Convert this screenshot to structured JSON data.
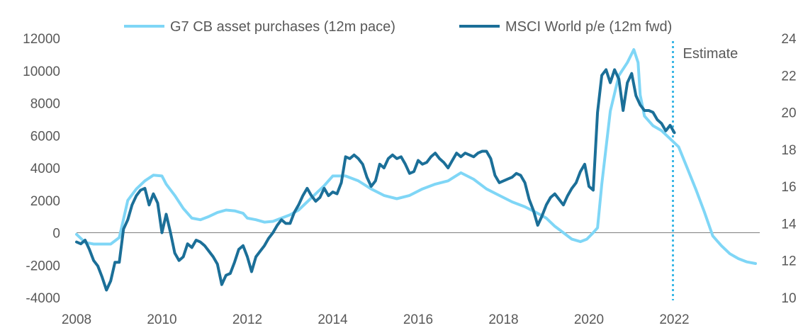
{
  "chart_data": {
    "type": "line",
    "title": "",
    "xlabel": "",
    "ylabel": "",
    "y2label": "",
    "x_ticks": [
      "2008",
      "2010",
      "2012",
      "2014",
      "2016",
      "2018",
      "2020",
      "2022"
    ],
    "x_range": [
      2008,
      2024
    ],
    "y_left_ticks": [
      "12000",
      "10000",
      "8000",
      "6000",
      "4000",
      "2000",
      "0",
      "-2000",
      "-4000"
    ],
    "y_left_range": [
      -4000,
      12000
    ],
    "y_right_ticks": [
      "24",
      "22",
      "20",
      "18",
      "16",
      "14",
      "12",
      "10"
    ],
    "y_right_range": [
      10,
      24
    ],
    "legend_position": "top",
    "grid": false,
    "zero_line": true,
    "annotation": {
      "label": "Estimate",
      "x": 2022
    },
    "series": [
      {
        "name": "G7 CB asset purchases (12m pace)",
        "axis": "left",
        "color": "#7fd6f6",
        "x": [
          2008.0,
          2008.2,
          2008.4,
          2008.6,
          2008.8,
          2009.0,
          2009.2,
          2009.4,
          2009.6,
          2009.8,
          2010.0,
          2010.1,
          2010.3,
          2010.5,
          2010.7,
          2010.9,
          2011.1,
          2011.3,
          2011.5,
          2011.7,
          2011.9,
          2012.0,
          2012.2,
          2012.4,
          2012.6,
          2012.8,
          2013.0,
          2013.2,
          2013.4,
          2013.6,
          2013.8,
          2014.0,
          2014.3,
          2014.6,
          2014.9,
          2015.2,
          2015.5,
          2015.8,
          2016.1,
          2016.4,
          2016.7,
          2017.0,
          2017.3,
          2017.6,
          2017.9,
          2018.2,
          2018.5,
          2018.8,
          2019.0,
          2019.2,
          2019.4,
          2019.6,
          2019.8,
          2019.95,
          2020.1,
          2020.2,
          2020.3,
          2020.5,
          2020.7,
          2020.9,
          2021.05,
          2021.15,
          2021.2,
          2021.3,
          2021.5,
          2021.7,
          2021.9,
          2022.1,
          2022.3,
          2022.5,
          2022.7,
          2022.9,
          2023.1,
          2023.3,
          2023.5,
          2023.7,
          2023.9
        ],
        "values": [
          -100,
          -600,
          -700,
          -700,
          -700,
          -300,
          2000,
          2700,
          3200,
          3550,
          3500,
          3000,
          2300,
          1500,
          900,
          800,
          1000,
          1250,
          1400,
          1350,
          1200,
          900,
          800,
          650,
          700,
          900,
          1100,
          1400,
          1900,
          2400,
          2900,
          3500,
          3500,
          3200,
          2700,
          2300,
          2100,
          2300,
          2700,
          3000,
          3200,
          3700,
          3300,
          2700,
          2300,
          1900,
          1600,
          1200,
          900,
          400,
          0,
          -400,
          -550,
          -400,
          0,
          300,
          3000,
          7500,
          9700,
          10500,
          11300,
          10500,
          8500,
          7200,
          6600,
          6300,
          5800,
          5300,
          4000,
          2700,
          1300,
          -200,
          -800,
          -1300,
          -1600,
          -1800,
          -1900
        ]
      },
      {
        "name": "MSCI World p/e (12m fwd)",
        "axis": "right",
        "color": "#1b6f98",
        "x": [
          2008.0,
          2008.1,
          2008.2,
          2008.3,
          2008.4,
          2008.5,
          2008.6,
          2008.7,
          2008.8,
          2008.9,
          2009.0,
          2009.1,
          2009.2,
          2009.3,
          2009.4,
          2009.5,
          2009.6,
          2009.7,
          2009.8,
          2009.9,
          2010.0,
          2010.1,
          2010.2,
          2010.3,
          2010.4,
          2010.5,
          2010.6,
          2010.7,
          2010.8,
          2010.9,
          2011.0,
          2011.1,
          2011.2,
          2011.3,
          2011.4,
          2011.5,
          2011.6,
          2011.7,
          2011.8,
          2011.9,
          2012.0,
          2012.1,
          2012.2,
          2012.3,
          2012.4,
          2012.5,
          2012.6,
          2012.7,
          2012.8,
          2012.9,
          2013.0,
          2013.1,
          2013.2,
          2013.3,
          2013.4,
          2013.5,
          2013.6,
          2013.7,
          2013.8,
          2013.9,
          2014.0,
          2014.1,
          2014.2,
          2014.3,
          2014.4,
          2014.5,
          2014.6,
          2014.7,
          2014.8,
          2014.9,
          2015.0,
          2015.1,
          2015.2,
          2015.3,
          2015.4,
          2015.5,
          2015.6,
          2015.7,
          2015.8,
          2015.9,
          2016.0,
          2016.1,
          2016.2,
          2016.3,
          2016.4,
          2016.5,
          2016.6,
          2016.7,
          2016.8,
          2016.9,
          2017.0,
          2017.1,
          2017.2,
          2017.3,
          2017.4,
          2017.5,
          2017.6,
          2017.7,
          2017.8,
          2017.9,
          2018.0,
          2018.1,
          2018.2,
          2018.3,
          2018.4,
          2018.5,
          2018.6,
          2018.7,
          2018.8,
          2018.9,
          2019.0,
          2019.1,
          2019.2,
          2019.3,
          2019.4,
          2019.5,
          2019.6,
          2019.7,
          2019.8,
          2019.9,
          2020.0,
          2020.1,
          2020.2,
          2020.3,
          2020.4,
          2020.5,
          2020.6,
          2020.7,
          2020.8,
          2020.9,
          2021.0,
          2021.1,
          2021.2,
          2021.3,
          2021.4,
          2021.5,
          2021.6,
          2021.7,
          2021.8,
          2021.9,
          2022.0
        ],
        "values": [
          13.0,
          12.9,
          13.1,
          12.6,
          12.0,
          11.7,
          11.1,
          10.4,
          10.9,
          11.9,
          11.9,
          13.7,
          14.2,
          15.0,
          15.5,
          15.8,
          15.9,
          15.0,
          15.6,
          15.1,
          13.5,
          14.5,
          13.5,
          12.4,
          12.0,
          12.2,
          12.9,
          12.7,
          13.1,
          13.0,
          12.8,
          12.5,
          12.2,
          11.8,
          10.7,
          11.2,
          11.3,
          11.9,
          12.6,
          12.8,
          12.2,
          11.4,
          12.2,
          12.5,
          12.8,
          13.2,
          13.5,
          13.9,
          14.2,
          14.0,
          14.0,
          14.6,
          15.0,
          15.5,
          15.9,
          15.5,
          15.2,
          15.4,
          15.9,
          15.5,
          15.7,
          15.6,
          16.2,
          17.6,
          17.5,
          17.7,
          17.5,
          17.2,
          16.5,
          16.0,
          16.3,
          17.2,
          17.0,
          17.5,
          17.7,
          17.5,
          17.6,
          17.2,
          16.7,
          16.8,
          17.4,
          17.2,
          17.3,
          17.6,
          17.8,
          17.5,
          17.3,
          17.0,
          17.4,
          17.8,
          17.6,
          17.8,
          17.7,
          17.6,
          17.8,
          17.9,
          17.9,
          17.5,
          16.6,
          16.2,
          16.3,
          16.4,
          16.5,
          16.7,
          16.6,
          16.2,
          15.3,
          14.7,
          13.9,
          14.4,
          15.0,
          15.4,
          15.6,
          15.3,
          15.0,
          15.5,
          15.9,
          16.2,
          16.8,
          17.2,
          16.0,
          15.8,
          20.0,
          22.0,
          22.3,
          21.6,
          22.3,
          21.8,
          20.1,
          21.6,
          22.1,
          20.9,
          20.4,
          20.1,
          20.1,
          20.0,
          19.6,
          19.4,
          19.0,
          19.3,
          18.9
        ]
      }
    ]
  }
}
